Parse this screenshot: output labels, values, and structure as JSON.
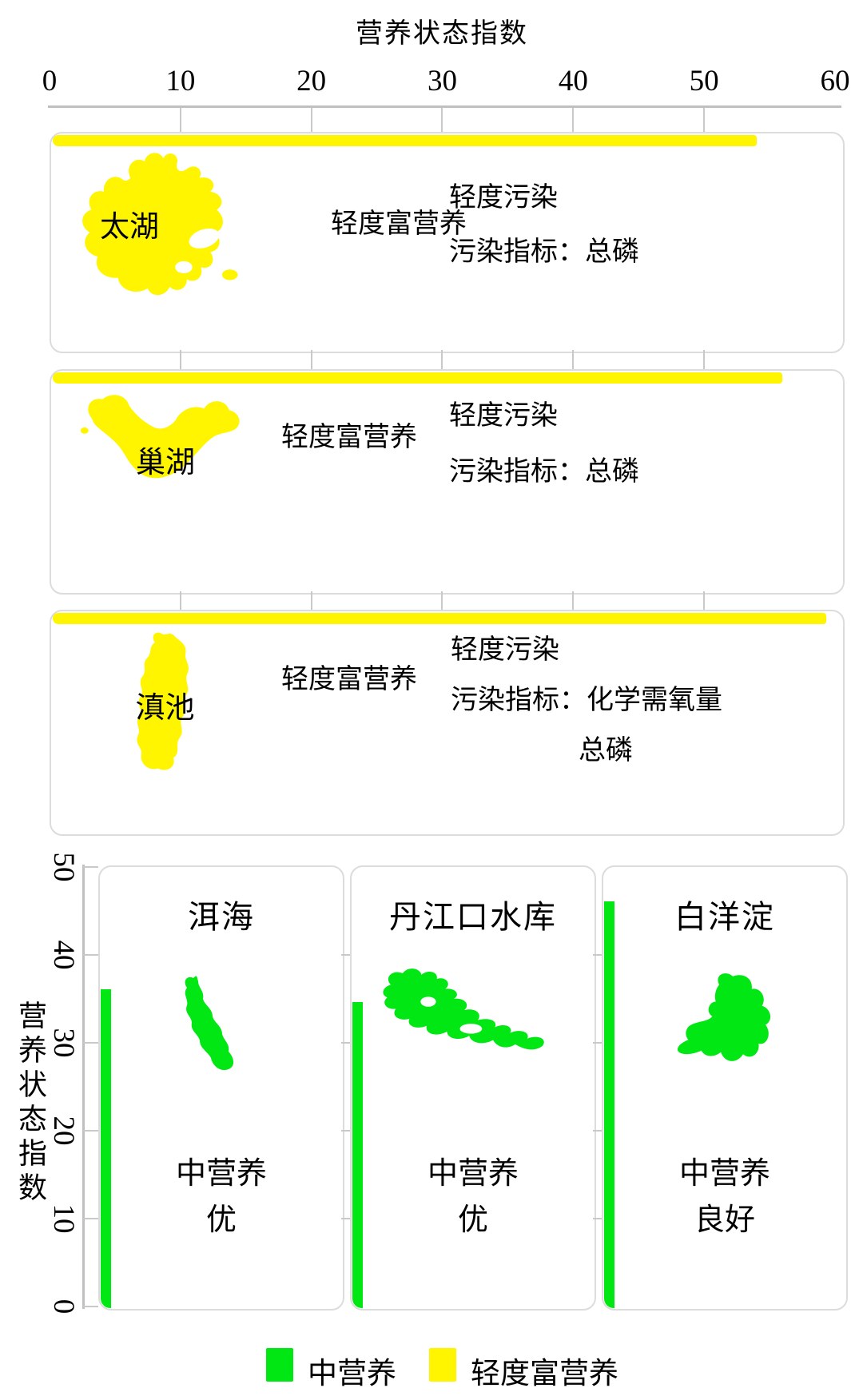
{
  "colors": {
    "bar_yellow": "#FFF500",
    "bar_green": "#00E713",
    "axis_line": "#C0C0C0",
    "panel_border": "#DCDCDC"
  },
  "top_chart": {
    "axis_title": "营养状态指数",
    "tick_labels": [
      "0",
      "10",
      "20",
      "30",
      "40",
      "50",
      "60"
    ],
    "tick_values": [
      0,
      10,
      20,
      30,
      40,
      50,
      60
    ],
    "xlim": [
      0,
      60
    ],
    "panels": [
      {
        "lake": "太湖",
        "value": 54,
        "trophic_status": "轻度富营养",
        "pollution_level": "轻度污染",
        "indicator_line": "污染指标：总磷"
      },
      {
        "lake": "巢湖",
        "value": 56,
        "trophic_status": "轻度富营养",
        "pollution_level": "轻度污染",
        "indicator_line": "污染指标：总磷"
      },
      {
        "lake": "滇池",
        "value": 59.3,
        "trophic_status": "轻度富营养",
        "pollution_level": "轻度污染",
        "indicator_line": "污染指标：化学需氧量",
        "indicator_line2": "总磷"
      }
    ]
  },
  "bottom_chart": {
    "y_axis_label": "营养状态指数",
    "tick_labels": [
      "50",
      "40",
      "30",
      "20",
      "10",
      "0"
    ],
    "tick_values": [
      50,
      40,
      30,
      20,
      10,
      0
    ],
    "ylim": [
      0,
      50
    ],
    "panels": [
      {
        "lake": "洱海",
        "value": 36.5,
        "trophic_status": "中营养",
        "grade": "优"
      },
      {
        "lake": "丹江口水库",
        "value": 35,
        "trophic_status": "中营养",
        "grade": "优"
      },
      {
        "lake": "白洋淀",
        "value": 46.5,
        "trophic_status": "中营养",
        "grade": "良好"
      }
    ]
  },
  "legend": {
    "items": [
      {
        "label": "中营养",
        "color": "#00E713"
      },
      {
        "label": "轻度富营养",
        "color": "#FFF500"
      }
    ]
  },
  "chart_data": [
    {
      "type": "bar",
      "orientation": "horizontal",
      "title": "营养状态指数",
      "categories": [
        "太湖",
        "巢湖",
        "滇池"
      ],
      "values": [
        54,
        56,
        59.3
      ],
      "xlabel": "营养状态指数",
      "ylabel": "",
      "xlim": [
        0,
        60
      ],
      "xticks": [
        0,
        10,
        20,
        30,
        40,
        50,
        60
      ],
      "bar_color": "#FFF500",
      "grid": false,
      "annotations": [
        {
          "category": "太湖",
          "trophic_status": "轻度富营养",
          "pollution_level": "轻度污染",
          "pollution_indicators": [
            "总磷"
          ]
        },
        {
          "category": "巢湖",
          "trophic_status": "轻度富营养",
          "pollution_level": "轻度污染",
          "pollution_indicators": [
            "总磷"
          ]
        },
        {
          "category": "滇池",
          "trophic_status": "轻度富营养",
          "pollution_level": "轻度污染",
          "pollution_indicators": [
            "化学需氧量",
            "总磷"
          ]
        }
      ]
    },
    {
      "type": "bar",
      "orientation": "vertical",
      "categories": [
        "洱海",
        "丹江口水库",
        "白洋淀"
      ],
      "values": [
        36.5,
        35,
        46.5
      ],
      "xlabel": "",
      "ylabel": "营养状态指数",
      "ylim": [
        0,
        50
      ],
      "yticks": [
        0,
        10,
        20,
        30,
        40,
        50
      ],
      "bar_color": "#00E713",
      "grid": false,
      "annotations": [
        {
          "category": "洱海",
          "trophic_status": "中营养",
          "grade": "优"
        },
        {
          "category": "丹江口水库",
          "trophic_status": "中营养",
          "grade": "优"
        },
        {
          "category": "白洋淀",
          "trophic_status": "中营养",
          "grade": "良好"
        }
      ],
      "legend_entries": [
        {
          "label": "中营养",
          "color": "#00E713"
        },
        {
          "label": "轻度富营养",
          "color": "#FFF500"
        }
      ],
      "legend_position": "bottom"
    }
  ]
}
